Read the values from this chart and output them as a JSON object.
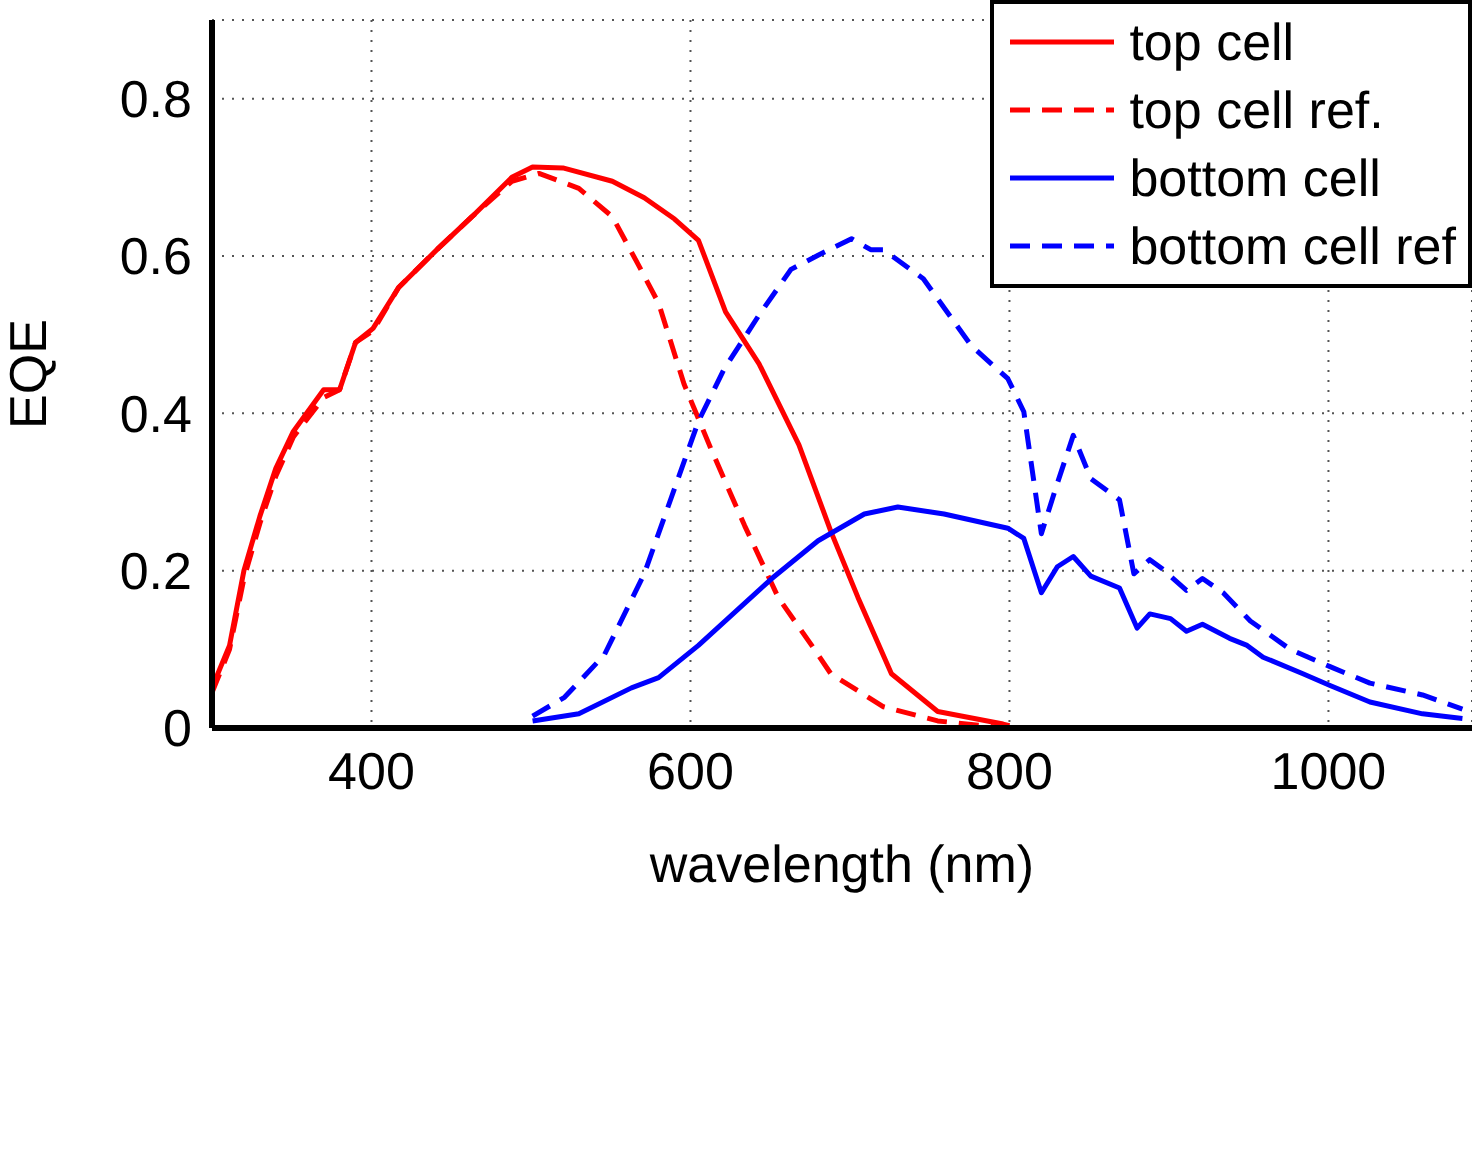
{
  "chart_data": {
    "type": "line",
    "xlabel": "wavelength (nm)",
    "ylabel": "EQE",
    "xlim": [
      300,
      1090
    ],
    "ylim": [
      0,
      0.9
    ],
    "xticks": [
      400,
      600,
      800,
      1000
    ],
    "yticks": [
      0,
      0.2,
      0.4,
      0.6,
      0.8
    ],
    "grid": true,
    "legend": "top right",
    "marker": "none",
    "series": [
      {
        "name": "top cell",
        "color": "#ff0000",
        "line_style": "solid",
        "x": [
          300,
          311,
          320,
          330,
          340,
          351,
          370,
          380,
          390,
          401,
          417,
          442,
          463,
          488,
          501,
          520,
          551,
          571,
          590,
          605,
          622,
          643,
          668,
          688,
          705,
          726,
          755,
          796,
          800
        ],
        "values": [
          0.051,
          0.105,
          0.2,
          0.269,
          0.33,
          0.377,
          0.43,
          0.43,
          0.49,
          0.508,
          0.56,
          0.61,
          0.65,
          0.7,
          0.713,
          0.712,
          0.695,
          0.674,
          0.647,
          0.62,
          0.529,
          0.463,
          0.36,
          0.25,
          0.166,
          0.069,
          0.021,
          0.005,
          0.003
        ]
      },
      {
        "name": "top cell ref.",
        "color": "#ff0000",
        "line_style": "dashed",
        "x": [
          300,
          311,
          320,
          330,
          340,
          351,
          370,
          380,
          390,
          401,
          417,
          442,
          463,
          488,
          505,
          530,
          551,
          567,
          580,
          596,
          613,
          634,
          655,
          676,
          688,
          721,
          755,
          788,
          800
        ],
        "values": [
          0.045,
          0.1,
          0.19,
          0.26,
          0.32,
          0.37,
          0.42,
          0.43,
          0.49,
          0.505,
          0.56,
          0.61,
          0.65,
          0.695,
          0.705,
          0.686,
          0.65,
          0.59,
          0.54,
          0.437,
          0.354,
          0.257,
          0.166,
          0.105,
          0.069,
          0.027,
          0.009,
          0.002,
          0
        ]
      },
      {
        "name": "bottom cell",
        "color": "#0000ff",
        "line_style": "solid",
        "x": [
          501,
          530,
          563,
          580,
          605,
          651,
          680,
          709,
          730,
          759,
          799,
          809,
          820,
          830,
          840,
          851,
          869,
          880,
          888,
          901,
          911,
          921,
          938,
          949,
          959,
          984,
          1001,
          1026,
          1059,
          1084
        ],
        "values": [
          0.009,
          0.018,
          0.051,
          0.064,
          0.105,
          0.19,
          0.238,
          0.272,
          0.281,
          0.272,
          0.254,
          0.241,
          0.172,
          0.205,
          0.218,
          0.193,
          0.178,
          0.127,
          0.145,
          0.139,
          0.123,
          0.132,
          0.114,
          0.105,
          0.09,
          0.069,
          0.054,
          0.033,
          0.018,
          0.012
        ]
      },
      {
        "name": "bottom cell ref",
        "color": "#0000ff",
        "line_style": "dashed",
        "x": [
          501,
          521,
          546,
          571,
          588,
          605,
          621,
          643,
          663,
          680,
          701,
          713,
          721,
          746,
          776,
          799,
          809,
          820,
          830,
          840,
          851,
          869,
          878,
          888,
          896,
          911,
          921,
          934,
          951,
          976,
          1001,
          1026,
          1059,
          1084
        ],
        "values": [
          0.015,
          0.039,
          0.093,
          0.196,
          0.293,
          0.39,
          0.456,
          0.525,
          0.583,
          0.601,
          0.622,
          0.608,
          0.608,
          0.571,
          0.486,
          0.444,
          0.402,
          0.247,
          0.311,
          0.372,
          0.317,
          0.29,
          0.196,
          0.214,
          0.202,
          0.175,
          0.19,
          0.172,
          0.136,
          0.1,
          0.078,
          0.057,
          0.042,
          0.024
        ]
      }
    ]
  }
}
